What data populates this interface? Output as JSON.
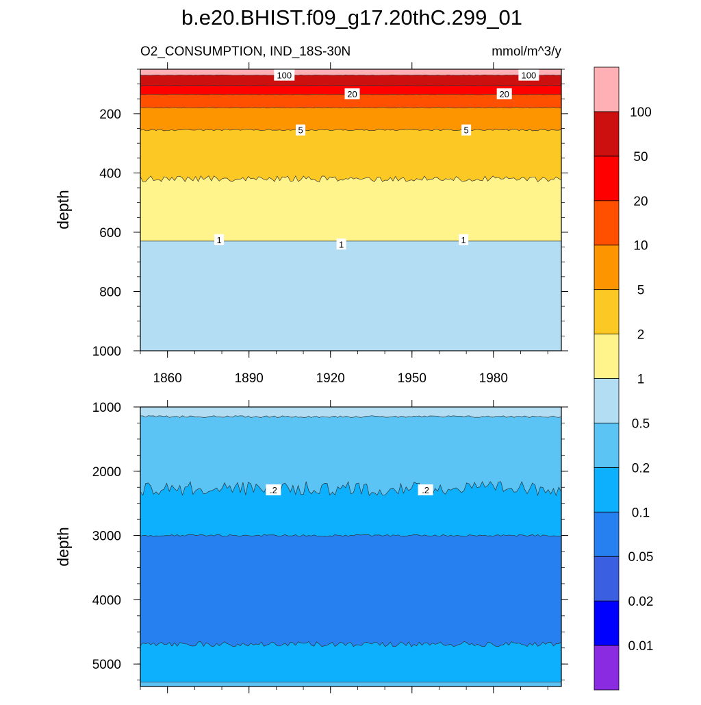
{
  "chart_data": {
    "type": "contour",
    "title": "b.e20.BHIST.f09_g17.20thC.299_01",
    "variable_label": "O2_CONSUMPTION, IND_18S-30N",
    "units_label": "mmol/m^3/y",
    "xlabel": "",
    "ylabel": "depth",
    "xlim": [
      1850,
      2005
    ],
    "x_ticks": [
      1860,
      1890,
      1920,
      1950,
      1980
    ],
    "x_tick_labels": [
      "1860",
      "1890",
      "1920",
      "1950",
      "1980"
    ],
    "colorbar": {
      "levels": [
        0.01,
        0.02,
        0.05,
        0.1,
        0.2,
        0.5,
        1,
        2,
        5,
        10,
        20,
        50,
        100
      ],
      "level_labels": [
        "0.01",
        "0.02",
        "0.05",
        "0.1",
        "0.2",
        "0.5",
        "1",
        "2",
        "5",
        "10",
        "20",
        "50",
        "100"
      ],
      "colors": [
        "#8a2be2",
        "#0000ff",
        "#3a5fe0",
        "#2780f0",
        "#0cb0fc",
        "#5bc4f4",
        "#b3ddf2",
        "#fff48c",
        "#fcc823",
        "#fd9500",
        "#ff5000",
        "#fe0000",
        "#cc1010",
        "#ffb0b4"
      ]
    },
    "panels": [
      {
        "name": "upper",
        "ylim": [
          0,
          1000
        ],
        "y_top": 50,
        "y_ticks": [
          200,
          400,
          600,
          800,
          1000
        ],
        "y_tick_labels": [
          "200",
          "400",
          "600",
          "800",
          "1000"
        ],
        "bands": [
          {
            "color_index": 13,
            "top": 50,
            "bottom": 70,
            "jitter": 0
          },
          {
            "color_index": 12,
            "top": 70,
            "bottom": 105,
            "jitter": 0.6
          },
          {
            "color_index": 11,
            "top": 105,
            "bottom": 135,
            "jitter": 0.6
          },
          {
            "color_index": 10,
            "top": 135,
            "bottom": 180,
            "jitter": 0.8
          },
          {
            "color_index": 9,
            "top": 180,
            "bottom": 255,
            "jitter": 1.2
          },
          {
            "color_index": 8,
            "top": 255,
            "bottom": 420,
            "jitter": 3
          },
          {
            "color_index": 7,
            "top": 420,
            "bottom": 630,
            "jitter": 10
          },
          {
            "color_index": 6,
            "top": 630,
            "bottom": 1000,
            "jitter": 0
          }
        ],
        "contour_labels": [
          {
            "text": "100",
            "x": 1903,
            "y": 70
          },
          {
            "text": "100",
            "x": 1993,
            "y": 70
          },
          {
            "text": "20",
            "x": 1928,
            "y": 133
          },
          {
            "text": "20",
            "x": 1984,
            "y": 133
          },
          {
            "text": "5",
            "x": 1909,
            "y": 255
          },
          {
            "text": "5",
            "x": 1970,
            "y": 255
          },
          {
            "text": "1",
            "x": 1879,
            "y": 625
          },
          {
            "text": "1",
            "x": 1924,
            "y": 640
          },
          {
            "text": "1",
            "x": 1969,
            "y": 625
          }
        ]
      },
      {
        "name": "lower",
        "ylim": [
          1000,
          5350
        ],
        "y_ticks": [
          1000,
          2000,
          3000,
          4000,
          5000
        ],
        "y_tick_labels": [
          "1000",
          "2000",
          "3000",
          "4000",
          "5000"
        ],
        "bands": [
          {
            "color_index": 6,
            "top": 1000,
            "bottom": 1150,
            "jitter": 70
          },
          {
            "color_index": 5,
            "top": 1150,
            "bottom": 2270,
            "jitter": 15
          },
          {
            "color_index": 4,
            "top": 2270,
            "bottom": 3000,
            "jitter": 110
          },
          {
            "color_index": 3,
            "top": 3000,
            "bottom": 4690,
            "jitter": 15
          },
          {
            "color_index": 4,
            "top": 4690,
            "bottom": 5280,
            "jitter": 40
          },
          {
            "color_index": 5,
            "top": 5280,
            "bottom": 5350,
            "jitter": 0
          }
        ],
        "contour_labels": [
          {
            "text": ".2",
            "x": 1899,
            "y": 2290
          },
          {
            "text": ".2",
            "x": 1955,
            "y": 2290
          }
        ]
      }
    ]
  }
}
